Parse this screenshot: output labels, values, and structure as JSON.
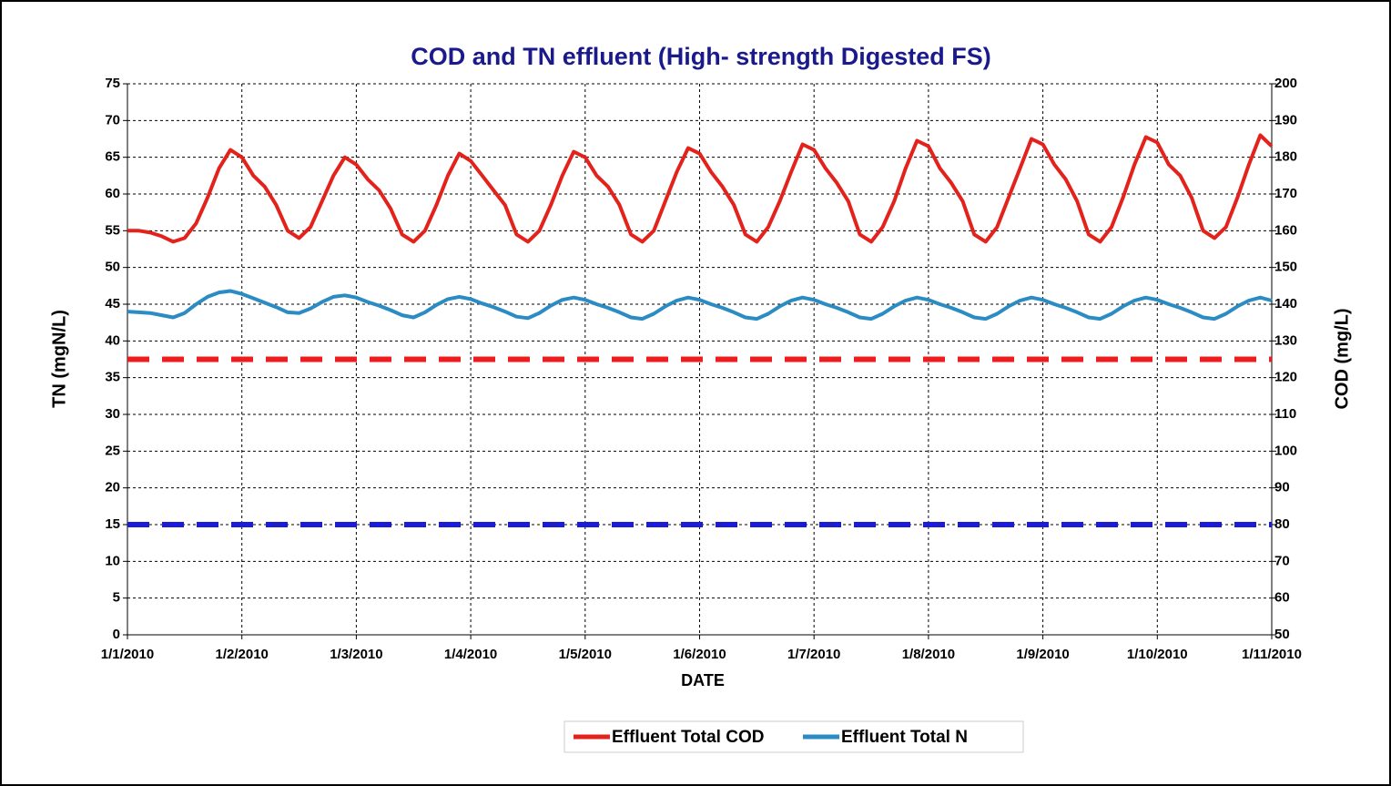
{
  "chart_data": {
    "type": "line",
    "title": "COD and TN effluent (High- strength Digested FS)",
    "xlabel": "DATE",
    "ylabel": "TN (mgN/L)",
    "y2label": "COD (mg/L)",
    "x": [
      0,
      0.1,
      0.2,
      0.3,
      0.4,
      0.5,
      0.6,
      0.7,
      0.8,
      0.9,
      1,
      1.1,
      1.2,
      1.3,
      1.4,
      1.5,
      1.6,
      1.7,
      1.8,
      1.9,
      2,
      2.1,
      2.2,
      2.3,
      2.4,
      2.5,
      2.6,
      2.7,
      2.8,
      2.9,
      3,
      3.1,
      3.2,
      3.3,
      3.4,
      3.5,
      3.6,
      3.7,
      3.8,
      3.9,
      4,
      4.1,
      4.2,
      4.3,
      4.4,
      4.5,
      4.6,
      4.7,
      4.8,
      4.9,
      5,
      5.1,
      5.2,
      5.3,
      5.4,
      5.5,
      5.6,
      5.7,
      5.8,
      5.9,
      6,
      6.1,
      6.2,
      6.3,
      6.4,
      6.5,
      6.6,
      6.7,
      6.8,
      6.9,
      7,
      7.1,
      7.2,
      7.3,
      7.4,
      7.5,
      7.6,
      7.7,
      7.8,
      7.9,
      8,
      8.1,
      8.2,
      8.3,
      8.4,
      8.5,
      8.6,
      8.7,
      8.8,
      8.9,
      9,
      9.1,
      9.2,
      9.3,
      9.4,
      9.5,
      9.6,
      9.7,
      9.8,
      9.9,
      10
    ],
    "xlim": [
      0,
      10
    ],
    "xticks": [
      {
        "value": 0,
        "label": "1/1/2010"
      },
      {
        "value": 1,
        "label": "1/2/2010"
      },
      {
        "value": 2,
        "label": "1/3/2010"
      },
      {
        "value": 3,
        "label": "1/4/2010"
      },
      {
        "value": 4,
        "label": "1/5/2010"
      },
      {
        "value": 5,
        "label": "1/6/2010"
      },
      {
        "value": 6,
        "label": "1/7/2010"
      },
      {
        "value": 7,
        "label": "1/8/2010"
      },
      {
        "value": 8,
        "label": "1/9/2010"
      },
      {
        "value": 9,
        "label": "1/10/2010"
      },
      {
        "value": 10,
        "label": "1/11/2010"
      }
    ],
    "ylim": [
      0,
      75
    ],
    "yticks": [
      0,
      5,
      10,
      15,
      20,
      25,
      30,
      35,
      40,
      45,
      50,
      55,
      60,
      65,
      70,
      75
    ],
    "y2lim": [
      50,
      200
    ],
    "y2ticks": [
      50,
      60,
      70,
      80,
      90,
      100,
      110,
      120,
      130,
      140,
      150,
      160,
      170,
      180,
      190,
      200
    ],
    "grid": true,
    "legend": "bottom",
    "series": [
      {
        "name": "Effluent Total COD",
        "color": "#e3221c",
        "axis": "y2",
        "values": [
          160,
          160,
          159.5,
          158.5,
          157,
          158,
          162,
          169,
          177,
          182,
          180,
          175,
          172,
          167,
          160,
          158,
          161,
          168,
          175,
          180,
          178,
          174,
          171,
          166,
          159,
          157,
          160,
          167,
          175,
          181,
          179,
          175,
          171,
          167,
          159,
          157,
          160,
          167,
          175,
          181.5,
          180,
          175,
          172,
          167,
          159,
          157,
          160,
          168,
          176,
          182.5,
          181,
          176,
          172,
          167,
          159,
          157,
          161,
          168,
          176,
          183.5,
          182,
          177,
          173,
          168,
          159,
          157,
          161,
          168,
          177,
          184.5,
          183,
          177,
          173,
          168,
          159,
          157,
          161,
          169,
          177,
          185,
          183.5,
          178,
          174,
          168,
          159,
          157,
          161,
          169,
          178,
          185.5,
          184,
          178,
          175,
          169,
          160,
          158,
          161,
          169,
          178,
          186,
          183
        ]
      },
      {
        "name": "Effluent Total N",
        "color": "#2b8cc4",
        "axis": "y",
        "values": [
          44,
          43.9,
          43.8,
          43.5,
          43.2,
          43.8,
          45,
          46,
          46.6,
          46.8,
          46.4,
          45.8,
          45.2,
          44.6,
          43.9,
          43.8,
          44.4,
          45.3,
          46,
          46.2,
          45.9,
          45.3,
          44.8,
          44.2,
          43.5,
          43.2,
          43.9,
          44.9,
          45.7,
          46,
          45.7,
          45.1,
          44.6,
          44,
          43.3,
          43.1,
          43.8,
          44.8,
          45.6,
          45.9,
          45.6,
          45,
          44.5,
          43.9,
          43.2,
          43,
          43.7,
          44.7,
          45.5,
          45.9,
          45.6,
          45,
          44.5,
          43.9,
          43.2,
          43,
          43.7,
          44.7,
          45.5,
          45.9,
          45.6,
          45,
          44.5,
          43.9,
          43.2,
          43,
          43.7,
          44.7,
          45.5,
          45.9,
          45.6,
          45,
          44.5,
          43.9,
          43.2,
          43,
          43.7,
          44.7,
          45.5,
          45.9,
          45.6,
          45,
          44.5,
          43.9,
          43.2,
          43,
          43.7,
          44.7,
          45.5,
          45.9,
          45.6,
          45,
          44.5,
          43.9,
          43.2,
          43,
          43.7,
          44.7,
          45.5,
          45.9,
          45.5
        ]
      }
    ],
    "reference_lines": [
      {
        "value": 125,
        "axis": "y2",
        "color": "#ee1c1c"
      },
      {
        "value": 15,
        "axis": "y",
        "color": "#1c1cd6"
      }
    ]
  }
}
